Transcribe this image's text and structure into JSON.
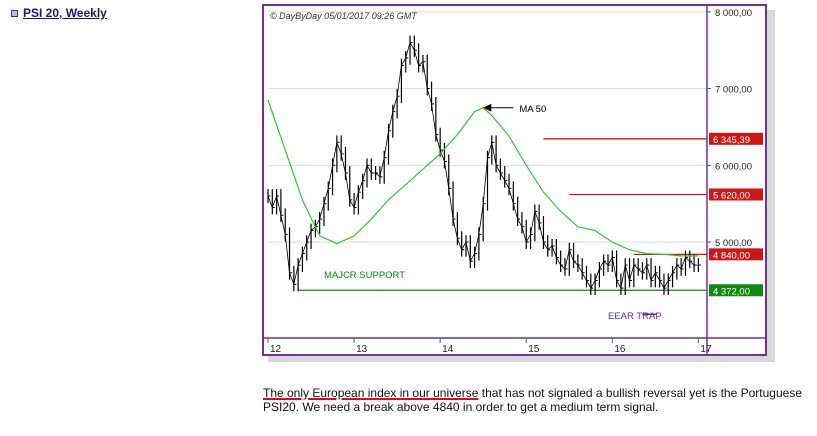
{
  "header": {
    "title": "PSI 20, Weekly"
  },
  "chart_data": {
    "type": "line",
    "title": "",
    "watermark": "© DayByDay 05/01/2017  09:26 GMT",
    "xlabel": "",
    "ylabel": "",
    "x_ticks": [
      "12",
      "13",
      "14",
      "15",
      "16",
      "17"
    ],
    "y_ticks": [
      {
        "value": 8000,
        "label": "8 000,00"
      },
      {
        "value": 7000,
        "label": "7 000,00"
      },
      {
        "value": 6000,
        "label": "6 000,00"
      },
      {
        "value": 5000,
        "label": "5 000,00"
      }
    ],
    "ylim": [
      3750,
      8050
    ],
    "grid": true,
    "series": [
      {
        "name": "",
        "kind": "price",
        "color": "#000000",
        "x": [
          2012.0,
          2012.05,
          2012.1,
          2012.15,
          2012.2,
          2012.25,
          2012.3,
          2012.35,
          2012.4,
          2012.45,
          2012.5,
          2012.55,
          2012.6,
          2012.65,
          2012.7,
          2012.75,
          2012.8,
          2012.85,
          2012.9,
          2012.95,
          2013.0,
          2013.05,
          2013.1,
          2013.15,
          2013.2,
          2013.25,
          2013.3,
          2013.35,
          2013.4,
          2013.45,
          2013.5,
          2013.55,
          2013.6,
          2013.65,
          2013.7,
          2013.75,
          2013.8,
          2013.85,
          2013.9,
          2013.95,
          2014.0,
          2014.05,
          2014.1,
          2014.15,
          2014.2,
          2014.25,
          2014.3,
          2014.35,
          2014.4,
          2014.45,
          2014.5,
          2014.55,
          2014.6,
          2014.65,
          2014.7,
          2014.75,
          2014.8,
          2014.85,
          2014.9,
          2014.95,
          2015.0,
          2015.05,
          2015.1,
          2015.15,
          2015.2,
          2015.25,
          2015.3,
          2015.35,
          2015.4,
          2015.45,
          2015.5,
          2015.55,
          2015.6,
          2015.65,
          2015.7,
          2015.75,
          2015.8,
          2015.85,
          2015.9,
          2015.95,
          2016.0,
          2016.05,
          2016.1,
          2016.15,
          2016.2,
          2016.25,
          2016.3,
          2016.35,
          2016.4,
          2016.45,
          2016.5,
          2016.55,
          2016.6,
          2016.65,
          2016.7,
          2016.75,
          2016.8,
          2016.85,
          2016.9,
          2016.95,
          2017.0
        ],
        "values": [
          5600,
          5450,
          5600,
          5350,
          5100,
          4600,
          4450,
          4700,
          4850,
          5000,
          5150,
          5200,
          5300,
          5500,
          5700,
          6000,
          6300,
          6150,
          5900,
          5550,
          5450,
          5650,
          5800,
          6000,
          5900,
          5900,
          5850,
          6100,
          6450,
          6700,
          6900,
          7300,
          7400,
          7600,
          7500,
          7300,
          7350,
          7000,
          6800,
          6400,
          6200,
          6050,
          5700,
          5300,
          5050,
          4900,
          5000,
          4750,
          4850,
          5100,
          5500,
          6100,
          6300,
          6000,
          5900,
          5800,
          5700,
          5500,
          5300,
          5200,
          5000,
          5100,
          5400,
          5250,
          5000,
          4900,
          4950,
          4800,
          4700,
          4650,
          4900,
          4750,
          4700,
          4600,
          4500,
          4400,
          4500,
          4650,
          4750,
          4700,
          4800,
          4500,
          4400,
          4700,
          4500,
          4700,
          4650,
          4600,
          4700,
          4500,
          4600,
          4500,
          4400,
          4500,
          4600,
          4700,
          4650,
          4800,
          4750,
          4700,
          4700
        ]
      },
      {
        "name": "",
        "kind": "ma",
        "color": "#2fc82f",
        "x": [
          2012.0,
          2012.2,
          2012.4,
          2012.6,
          2012.8,
          2013.0,
          2013.2,
          2013.4,
          2013.6,
          2013.8,
          2014.0,
          2014.2,
          2014.4,
          2014.5,
          2014.6,
          2014.8,
          2015.0,
          2015.2,
          2015.4,
          2015.6,
          2015.8,
          2016.0,
          2016.2,
          2016.4,
          2016.6,
          2016.8,
          2017.0
        ],
        "values": [
          6850,
          6200,
          5550,
          5080,
          4980,
          5080,
          5300,
          5550,
          5750,
          5950,
          6150,
          6400,
          6700,
          6750,
          6650,
          6380,
          6000,
          5650,
          5400,
          5200,
          5150,
          5000,
          4900,
          4850,
          4840,
          4820,
          4820
        ]
      }
    ],
    "levels": [
      {
        "value": 6345.39,
        "label": "6 345,39",
        "color": "#c81818",
        "x_from": 2015.2
      },
      {
        "value": 5620.0,
        "label": "5 620,00",
        "color": "#c81818",
        "x_from": 2015.5
      },
      {
        "value": 4840.0,
        "label": "4 840,00",
        "color": "#c81818",
        "x_from": 2016.25
      },
      {
        "value": 4372.0,
        "label": "4 372,00",
        "color": "#118811",
        "x_from": 2012.35
      }
    ],
    "annotations": [
      {
        "text": "MA 50",
        "x": 2014.85,
        "y": 6750,
        "arrow": true
      },
      {
        "text": "MAJCR SUPPORT",
        "x": 2012.65,
        "y": 4530,
        "color": "#118811"
      },
      {
        "text": "EEAR TRAP",
        "x": 2015.95,
        "y": 4000,
        "color": "#6a2d8a",
        "mark_x": [
          2016.35,
          2016.52
        ],
        "mark_y": 4060
      }
    ]
  },
  "caption": {
    "part1": "The only European index in our universe",
    "part2": " that has not signaled a bullish reversal yet is the Portuguese PSI20. We need a break above 4840 in order to get a medium term signal."
  }
}
